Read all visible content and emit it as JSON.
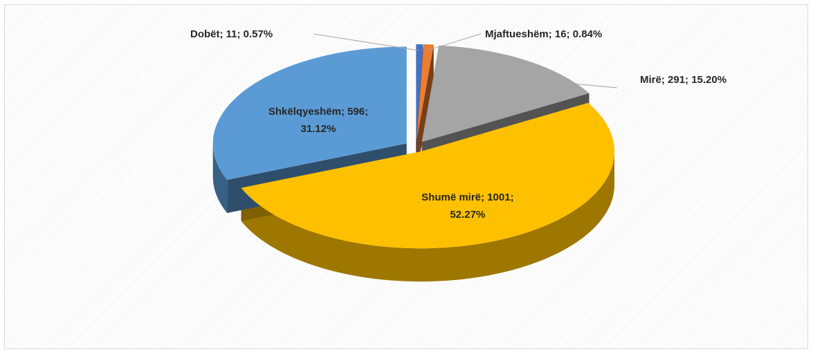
{
  "chart_data": {
    "type": "pie",
    "values": [
      11,
      16,
      291,
      1001,
      596
    ],
    "value_labels": [
      "Dobët; 11;  0.57%",
      "Mjaftueshëm; 16;  0.84%",
      "Mirë; 291;  15.20%",
      "Shumë mirë; 1001; 52.27%",
      "Shkëlqyeshëm; 596; 31.12%"
    ],
    "colors": [
      "#4472c4",
      "#ed7d31",
      "#a5a5a5",
      "#ffc000",
      "#5b9bd5"
    ]
  }
}
